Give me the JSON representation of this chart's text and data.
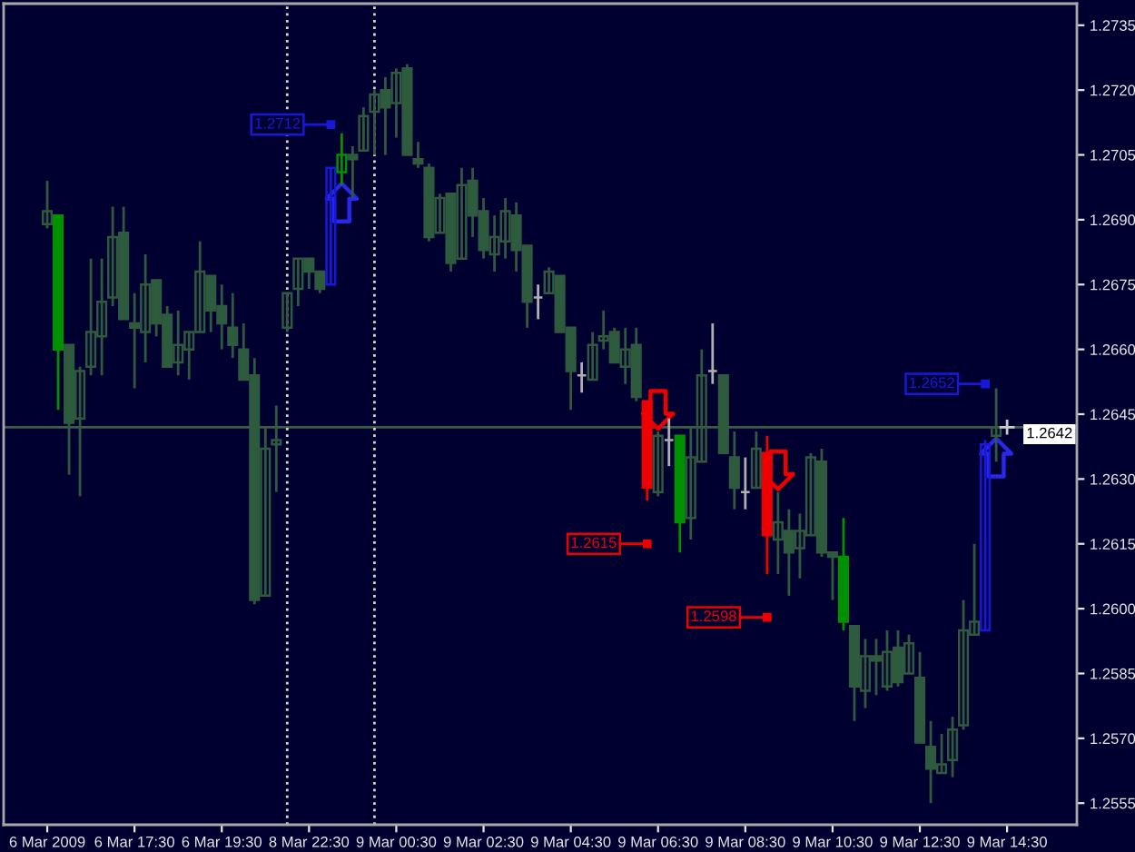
{
  "chart_data": {
    "type": "candlestick",
    "categories": [
      "6 Mar 2009",
      null,
      null,
      null,
      null,
      null,
      null,
      null,
      "6 Mar 17:30",
      null,
      null,
      null,
      null,
      null,
      null,
      null,
      "6 Mar 19:30",
      null,
      null,
      null,
      null,
      null,
      null,
      null,
      "8 Mar 22:30",
      null,
      null,
      null,
      null,
      null,
      null,
      null,
      "9 Mar 00:30",
      null,
      null,
      null,
      null,
      null,
      null,
      null,
      "9 Mar 02:30",
      null,
      null,
      null,
      null,
      null,
      null,
      null,
      "9 Mar 04:30",
      null,
      null,
      null,
      null,
      null,
      null,
      null,
      "9 Mar 06:30",
      null,
      null,
      null,
      null,
      null,
      null,
      null,
      "9 Mar 08:30",
      null,
      null,
      null,
      null,
      null,
      null,
      null,
      "9 Mar 10:30",
      null,
      null,
      null,
      null,
      null,
      null,
      null,
      "9 Mar 12:30",
      null,
      null,
      null,
      null,
      null,
      null,
      null,
      "9 Mar 14:30"
    ],
    "ohlc": [
      [
        1.2689,
        1.2699,
        1.2688,
        1.2692
      ],
      [
        1.2691,
        1.2691,
        1.2646,
        1.266
      ],
      [
        1.2661,
        1.2661,
        1.2631,
        1.2643
      ],
      [
        1.2644,
        1.2656,
        1.2626,
        1.2655
      ],
      [
        1.2656,
        1.2681,
        1.2654,
        1.2664
      ],
      [
        1.2663,
        1.2681,
        1.2654,
        1.2671
      ],
      [
        1.2672,
        1.2693,
        1.267,
        1.2686
      ],
      [
        1.2687,
        1.2693,
        1.2667,
        1.2667
      ],
      [
        1.2666,
        1.2673,
        1.2651,
        1.2665
      ],
      [
        1.2664,
        1.2682,
        1.2657,
        1.2675
      ],
      [
        1.2676,
        1.2676,
        1.2663,
        1.2666
      ],
      [
        1.2668,
        1.267,
        1.2656,
        1.2656
      ],
      [
        1.2657,
        1.2669,
        1.2654,
        1.2661
      ],
      [
        1.266,
        1.2664,
        1.2653,
        1.2664
      ],
      [
        1.2664,
        1.2685,
        1.2664,
        1.2678
      ],
      [
        1.2677,
        1.2677,
        1.2664,
        1.2669
      ],
      [
        1.267,
        1.2675,
        1.266,
        1.2666
      ],
      [
        1.2665,
        1.2673,
        1.2658,
        1.2661
      ],
      [
        1.266,
        1.2666,
        1.2653,
        1.2653
      ],
      [
        1.2654,
        1.2658,
        1.2601,
        1.2602
      ],
      [
        1.2603,
        1.2642,
        1.2603,
        1.2637
      ],
      [
        1.2638,
        1.2647,
        1.2627,
        1.2639
      ],
      [
        1.2665,
        1.2673,
        1.2664,
        1.2673
      ],
      [
        1.2674,
        1.2681,
        1.267,
        1.2681
      ],
      [
        1.2681,
        1.2681,
        1.2674,
        1.2678
      ],
      [
        1.2678,
        1.2678,
        1.2673,
        1.2674
      ],
      [
        1.2675,
        1.2702,
        1.2675,
        1.2702
      ],
      [
        1.2701,
        1.271,
        1.2698,
        1.2705
      ],
      [
        1.2705,
        1.2707,
        1.2695,
        1.2704
      ],
      [
        1.2706,
        1.2716,
        1.2706,
        1.2714
      ],
      [
        1.2715,
        1.272,
        1.2705,
        1.2719
      ],
      [
        1.272,
        1.2723,
        1.2705,
        1.2716
      ],
      [
        1.2717,
        1.2725,
        1.2709,
        1.2724
      ],
      [
        1.2725,
        1.2726,
        1.2705,
        1.2705
      ],
      [
        1.2704,
        1.2708,
        1.2702,
        1.2703
      ],
      [
        1.2702,
        1.2703,
        1.2685,
        1.2686
      ],
      [
        1.2687,
        1.2696,
        1.2687,
        1.2695
      ],
      [
        1.2696,
        1.2696,
        1.2678,
        1.268
      ],
      [
        1.2681,
        1.2702,
        1.2681,
        1.2698
      ],
      [
        1.2699,
        1.2702,
        1.2686,
        1.2691
      ],
      [
        1.2692,
        1.2695,
        1.2681,
        1.2683
      ],
      [
        1.2682,
        1.2691,
        1.2678,
        1.2686
      ],
      [
        1.2685,
        1.2695,
        1.2681,
        1.2692
      ],
      [
        1.2691,
        1.2694,
        1.2678,
        1.2683
      ],
      [
        1.2684,
        1.2684,
        1.2665,
        1.2671
      ],
      [
        1.2672,
        1.2675,
        1.2667,
        1.2672
      ],
      [
        1.2673,
        1.2679,
        1.2673,
        1.2678
      ],
      [
        1.2677,
        1.2677,
        1.2664,
        1.2664
      ],
      [
        1.2665,
        1.2665,
        1.2646,
        1.2655
      ],
      [
        1.2654,
        1.2657,
        1.265,
        1.2654
      ],
      [
        1.2653,
        1.2664,
        1.2653,
        1.2661
      ],
      [
        1.2662,
        1.2669,
        1.266,
        1.2663
      ],
      [
        1.2664,
        1.2665,
        1.2657,
        1.2657
      ],
      [
        1.2656,
        1.2665,
        1.2652,
        1.266
      ],
      [
        1.2661,
        1.2665,
        1.2648,
        1.2649
      ],
      [
        1.2648,
        1.2648,
        1.2625,
        1.2628
      ],
      [
        1.2627,
        1.2641,
        1.2626,
        1.264
      ],
      [
        1.2639,
        1.2644,
        1.2633,
        1.2639
      ],
      [
        1.264,
        1.264,
        1.2613,
        1.262
      ],
      [
        1.2621,
        1.2642,
        1.2616,
        1.2635
      ],
      [
        1.2634,
        1.266,
        1.2634,
        1.2654
      ],
      [
        1.2655,
        1.2666,
        1.2652,
        1.2655
      ],
      [
        1.2654,
        1.2654,
        1.2636,
        1.2636
      ],
      [
        1.2635,
        1.2641,
        1.2623,
        1.2628
      ],
      [
        1.2627,
        1.2635,
        1.2623,
        1.2627
      ],
      [
        1.2628,
        1.2641,
        1.2628,
        1.2637
      ],
      [
        1.2636,
        1.264,
        1.2608,
        1.2617
      ],
      [
        1.2616,
        1.2627,
        1.2608,
        1.262
      ],
      [
        1.2618,
        1.2623,
        1.2603,
        1.2613
      ],
      [
        1.2614,
        1.2622,
        1.2607,
        1.2618
      ],
      [
        1.2617,
        1.2636,
        1.2617,
        1.2635
      ],
      [
        1.2634,
        1.2637,
        1.2612,
        1.2613
      ],
      [
        1.2613,
        1.2613,
        1.2602,
        1.2612
      ],
      [
        1.2612,
        1.2621,
        1.2595,
        1.2597
      ],
      [
        1.2596,
        1.2596,
        1.2574,
        1.2582
      ],
      [
        1.2581,
        1.2593,
        1.2577,
        1.2589
      ],
      [
        1.2589,
        1.2593,
        1.258,
        1.2588
      ],
      [
        1.2582,
        1.2595,
        1.2581,
        1.259
      ],
      [
        1.2591,
        1.2595,
        1.2582,
        1.2583
      ],
      [
        1.2585,
        1.2594,
        1.2585,
        1.2592
      ],
      [
        1.2584,
        1.259,
        1.2569,
        1.2569
      ],
      [
        1.2568,
        1.2574,
        1.2555,
        1.2563
      ],
      [
        1.2562,
        1.2571,
        1.2562,
        1.2564
      ],
      [
        1.2565,
        1.2575,
        1.2561,
        1.2572
      ],
      [
        1.2573,
        1.2602,
        1.2572,
        1.2595
      ],
      [
        1.2594,
        1.2615,
        1.2594,
        1.2597
      ],
      [
        1.2595,
        1.2639,
        1.2595,
        1.2638
      ],
      [
        1.264,
        1.2651,
        1.2634,
        1.2642
      ],
      null
    ],
    "colors": [
      "#2e5a3e",
      "#009000",
      "#2e5a3e",
      "#2e5a3e",
      "#2e5a3e",
      "#2e5a3e",
      "#2e5a3e",
      "#2e5a3e",
      "#2e5a3e",
      "#2e5a3e",
      "#2e5a3e",
      "#2e5a3e",
      "#2e5a3e",
      "#2e5a3e",
      "#2e5a3e",
      "#2e5a3e",
      "#2e5a3e",
      "#2e5a3e",
      "#2e5a3e",
      "#2e5a3e",
      "#2e5a3e",
      "#2e5a3e",
      "#2e5a3e",
      "#2e5a3e",
      "#2e5a3e",
      "#2e5a3e",
      "#1818d8",
      "#009000",
      "#2e5a3e",
      "#2e5a3e",
      "#2e5a3e",
      "#2e5a3e",
      "#2e5a3e",
      "#2e5a3e",
      "#2e5a3e",
      "#2e5a3e",
      "#2e5a3e",
      "#2e5a3e",
      "#2e5a3e",
      "#2e5a3e",
      "#2e5a3e",
      "#2e5a3e",
      "#2e5a3e",
      "#2e5a3e",
      "#2e5a3e",
      "#b0b0b0",
      "#2e5a3e",
      "#2e5a3e",
      "#2e5a3e",
      "#b0b0b0",
      "#2e5a3e",
      "#2e5a3e",
      "#2e5a3e",
      "#2e5a3e",
      "#2e5a3e",
      "#ee0000",
      "#2e5a3e",
      "#b0b0b0",
      "#009000",
      "#2e5a3e",
      "#2e5a3e",
      "#b0b0b0",
      "#2e5a3e",
      "#2e5a3e",
      "#b0b0b0",
      "#2e5a3e",
      "#ee0000",
      "#2e5a3e",
      "#2e5a3e",
      "#2e5a3e",
      "#2e5a3e",
      "#2e5a3e",
      "#2e5a3e",
      "#009000",
      "#2e5a3e",
      "#2e5a3e",
      "#2e5a3e",
      "#2e5a3e",
      "#2e5a3e",
      "#2e5a3e",
      "#2e5a3e",
      "#2e5a3e",
      "#2e5a3e",
      "#2e5a3e",
      "#2e5a3e",
      "#2e5a3e",
      "#1818d8",
      "#2e5a3e",
      null
    ],
    "series": [
      {
        "type": "scatter",
        "color": "#ee0000",
        "marker": "square",
        "values": [
          null,
          null,
          null,
          null,
          null,
          null,
          null,
          null,
          null,
          null,
          null,
          null,
          null,
          null,
          null,
          null,
          null,
          null,
          null,
          null,
          null,
          null,
          null,
          null,
          null,
          null,
          null,
          null,
          null,
          null,
          null,
          null,
          null,
          null,
          null,
          null,
          null,
          null,
          null,
          null,
          null,
          null,
          null,
          null,
          null,
          null,
          null,
          null,
          null,
          null,
          null,
          null,
          null,
          null,
          null,
          1.2615,
          null,
          null,
          null,
          null,
          null,
          null,
          null,
          null,
          null,
          null,
          1.2598,
          null,
          null,
          null,
          null,
          null,
          null,
          null,
          null,
          null,
          null,
          null,
          null,
          null,
          null,
          null,
          null,
          null,
          null,
          null,
          null,
          null,
          null
        ],
        "value_labels": [
          null,
          null,
          null,
          null,
          null,
          null,
          null,
          null,
          null,
          null,
          null,
          null,
          null,
          null,
          null,
          null,
          null,
          null,
          null,
          null,
          null,
          null,
          null,
          null,
          null,
          null,
          null,
          null,
          null,
          null,
          null,
          null,
          null,
          null,
          null,
          null,
          null,
          null,
          null,
          null,
          null,
          null,
          null,
          null,
          null,
          null,
          null,
          null,
          null,
          null,
          null,
          null,
          null,
          null,
          null,
          "1.2615",
          null,
          null,
          null,
          null,
          null,
          null,
          null,
          null,
          null,
          null,
          "1.2598",
          null,
          null,
          null,
          null,
          null,
          null,
          null,
          null,
          null,
          null,
          null,
          null,
          null,
          null,
          null,
          null,
          null,
          null,
          null,
          null,
          null,
          null
        ]
      },
      {
        "type": "scatter",
        "color": "#1818d8",
        "marker": "square",
        "values": [
          null,
          null,
          null,
          null,
          null,
          null,
          null,
          null,
          null,
          null,
          null,
          null,
          null,
          null,
          null,
          null,
          null,
          null,
          null,
          null,
          null,
          null,
          null,
          null,
          null,
          null,
          1.2712,
          null,
          null,
          null,
          null,
          null,
          null,
          null,
          null,
          null,
          null,
          null,
          null,
          null,
          null,
          null,
          null,
          null,
          null,
          null,
          null,
          null,
          null,
          null,
          null,
          null,
          null,
          null,
          null,
          null,
          null,
          null,
          null,
          null,
          null,
          null,
          null,
          null,
          null,
          null,
          null,
          null,
          null,
          null,
          null,
          null,
          null,
          null,
          null,
          null,
          null,
          null,
          null,
          null,
          null,
          null,
          null,
          null,
          null,
          null,
          1.2652,
          null,
          null
        ],
        "value_labels": [
          null,
          null,
          null,
          null,
          null,
          null,
          null,
          null,
          null,
          null,
          null,
          null,
          null,
          null,
          null,
          null,
          null,
          null,
          null,
          null,
          null,
          null,
          null,
          null,
          null,
          null,
          "1.2712",
          null,
          null,
          null,
          null,
          null,
          null,
          null,
          null,
          null,
          null,
          null,
          null,
          null,
          null,
          null,
          null,
          null,
          null,
          null,
          null,
          null,
          null,
          null,
          null,
          null,
          null,
          null,
          null,
          null,
          null,
          null,
          null,
          null,
          null,
          null,
          null,
          null,
          null,
          null,
          null,
          null,
          null,
          null,
          null,
          null,
          null,
          null,
          null,
          null,
          null,
          null,
          null,
          null,
          null,
          null,
          null,
          null,
          null,
          null,
          "1.2652",
          null,
          null
        ]
      },
      {
        "type": "scatter",
        "color": "#ee0000",
        "values": [
          null,
          null,
          null,
          null,
          null,
          null,
          null,
          null,
          null,
          null,
          null,
          null,
          null,
          null,
          null,
          null,
          null,
          null,
          null,
          null,
          null,
          null,
          null,
          null,
          null,
          null,
          null,
          null,
          null,
          null,
          null,
          null,
          null,
          null,
          null,
          null,
          null,
          null,
          null,
          null,
          null,
          null,
          null,
          null,
          null,
          null,
          null,
          null,
          null,
          null,
          null,
          null,
          null,
          null,
          null,
          null,
          1.2646,
          null,
          null,
          null,
          null,
          null,
          null,
          null,
          null,
          null,
          null,
          1.2632,
          null,
          null,
          null,
          null,
          null,
          null,
          null,
          null,
          null,
          null,
          null,
          null,
          null,
          null,
          null,
          null,
          null,
          null,
          null,
          null,
          null
        ]
      },
      {
        "type": "scatter",
        "color": "#2828e8",
        "values": [
          null,
          null,
          null,
          null,
          null,
          null,
          null,
          null,
          null,
          null,
          null,
          null,
          null,
          null,
          null,
          null,
          null,
          null,
          null,
          null,
          null,
          null,
          null,
          null,
          null,
          null,
          null,
          1.2694,
          null,
          null,
          null,
          null,
          null,
          null,
          null,
          null,
          null,
          null,
          null,
          null,
          null,
          null,
          null,
          null,
          null,
          null,
          null,
          null,
          null,
          null,
          null,
          null,
          null,
          null,
          null,
          null,
          null,
          null,
          null,
          null,
          null,
          null,
          null,
          null,
          null,
          null,
          null,
          null,
          null,
          null,
          null,
          null,
          null,
          null,
          null,
          null,
          null,
          null,
          null,
          null,
          null,
          null,
          null,
          null,
          null,
          null,
          null,
          1.2635,
          null
        ]
      },
      {
        "type": "scatter",
        "color": "#c8c8c8",
        "marker": "cross",
        "values": [
          null,
          null,
          null,
          null,
          null,
          null,
          null,
          null,
          null,
          null,
          null,
          null,
          null,
          null,
          null,
          null,
          null,
          null,
          null,
          null,
          null,
          null,
          null,
          null,
          null,
          null,
          null,
          null,
          null,
          null,
          null,
          null,
          null,
          null,
          null,
          null,
          null,
          null,
          null,
          null,
          null,
          null,
          null,
          null,
          null,
          null,
          null,
          null,
          null,
          null,
          null,
          null,
          null,
          null,
          null,
          null,
          null,
          null,
          null,
          null,
          null,
          null,
          null,
          null,
          null,
          null,
          null,
          null,
          null,
          null,
          null,
          null,
          null,
          null,
          null,
          null,
          null,
          null,
          null,
          null,
          null,
          null,
          null,
          null,
          null,
          null,
          null,
          null,
          1.2642
        ]
      }
    ],
    "ref_lines": [
      {
        "axis": "y",
        "value": 1.2642,
        "label": "1.2642",
        "color": "#3d5c45"
      }
    ],
    "ylim": [
      1.255,
      1.274
    ],
    "yticks": [
      1.2555,
      {
        "value": 1.257,
        "label": "1.2570"
      },
      1.2585,
      {
        "value": 1.26,
        "label": "1.2600"
      },
      1.2615,
      {
        "value": 1.263,
        "label": "1.2630"
      },
      1.2645,
      {
        "value": 1.266,
        "label": "1.2660"
      },
      1.2675,
      {
        "value": 1.269,
        "label": "1.2690"
      },
      1.2705,
      {
        "value": 1.272,
        "label": "1.2720"
      },
      1.2735
    ]
  }
}
